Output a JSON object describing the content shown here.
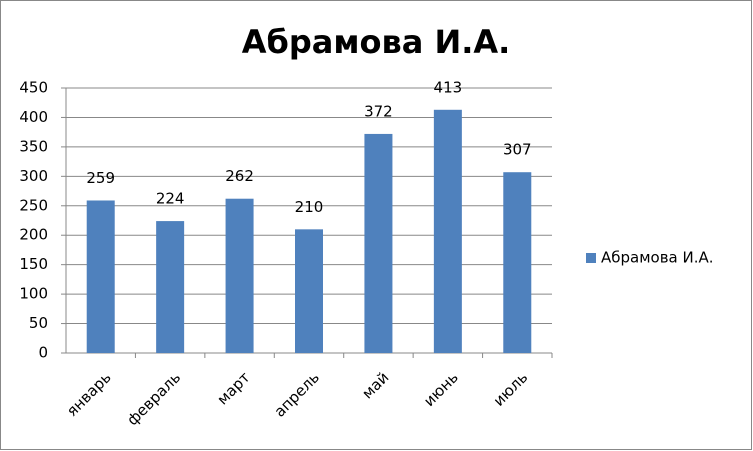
{
  "chart_data": {
    "type": "bar",
    "title": "Абрамова И.А.",
    "categories": [
      "январь",
      "февраль",
      "март",
      "апрель",
      "май",
      "июнь",
      "июль"
    ],
    "series": [
      {
        "name": "Абрамова И.А.",
        "color": "#4f81bd",
        "values": [
          259,
          224,
          262,
          210,
          372,
          413,
          307
        ]
      }
    ],
    "ylim": [
      0,
      450
    ],
    "yticks": [
      0,
      50,
      100,
      150,
      200,
      250,
      300,
      350,
      400,
      450
    ],
    "grid": true,
    "legend": "right"
  }
}
